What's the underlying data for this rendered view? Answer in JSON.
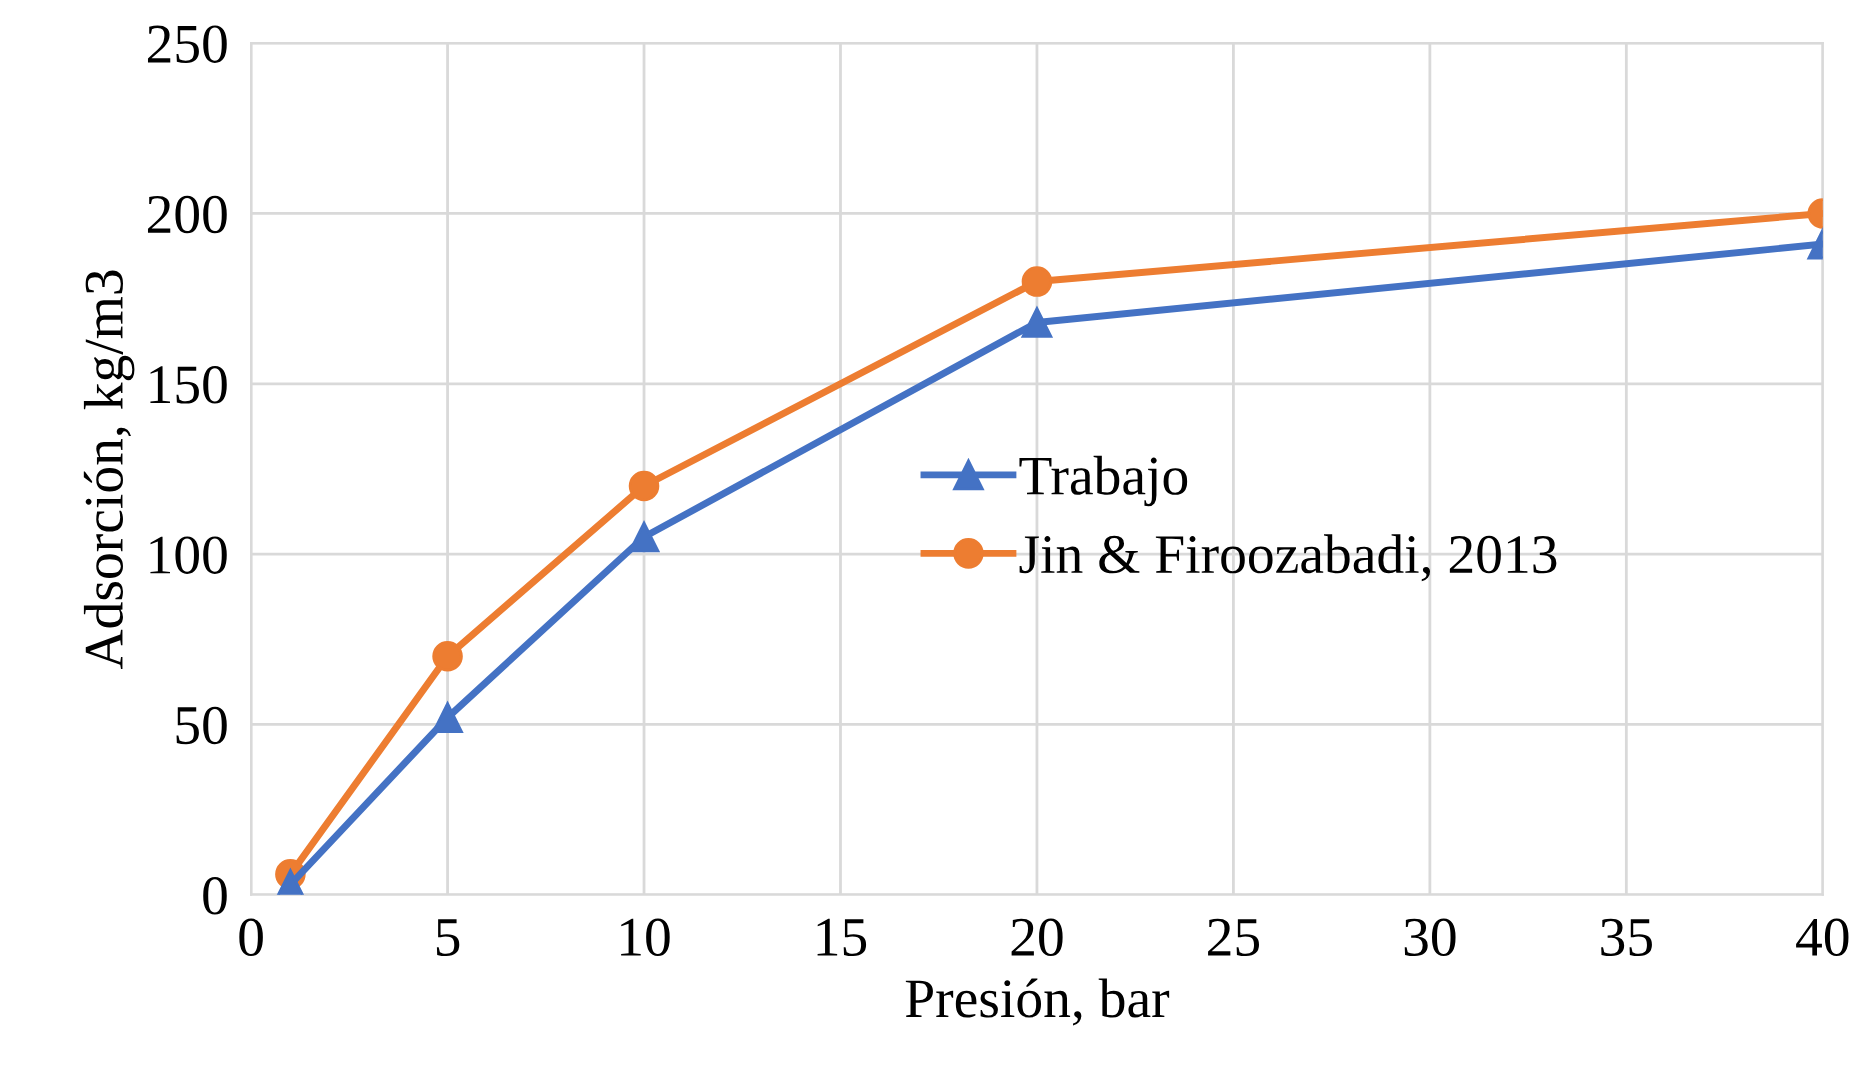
{
  "chart_data": {
    "type": "line",
    "xlabel": "Presión, bar",
    "ylabel": "Adsorción, kg/m3",
    "x": [
      1,
      5,
      10,
      20,
      40
    ],
    "series": [
      {
        "name": "Trabajo",
        "color": "#4472c4",
        "marker": "triangle",
        "values": [
          3,
          52,
          105,
          168,
          191
        ]
      },
      {
        "name": "Jin & Firoozabadi, 2013",
        "color": "#ed7d31",
        "marker": "circle",
        "values": [
          6,
          70,
          120,
          180,
          200
        ]
      }
    ],
    "xlim": [
      0,
      40
    ],
    "xticks": [
      0,
      5,
      10,
      15,
      20,
      25,
      30,
      35,
      40
    ],
    "ylim": [
      0,
      250
    ],
    "yticks": [
      0,
      50,
      100,
      150,
      200,
      250
    ],
    "grid": true,
    "legend": "center right",
    "line_style": "solid"
  }
}
